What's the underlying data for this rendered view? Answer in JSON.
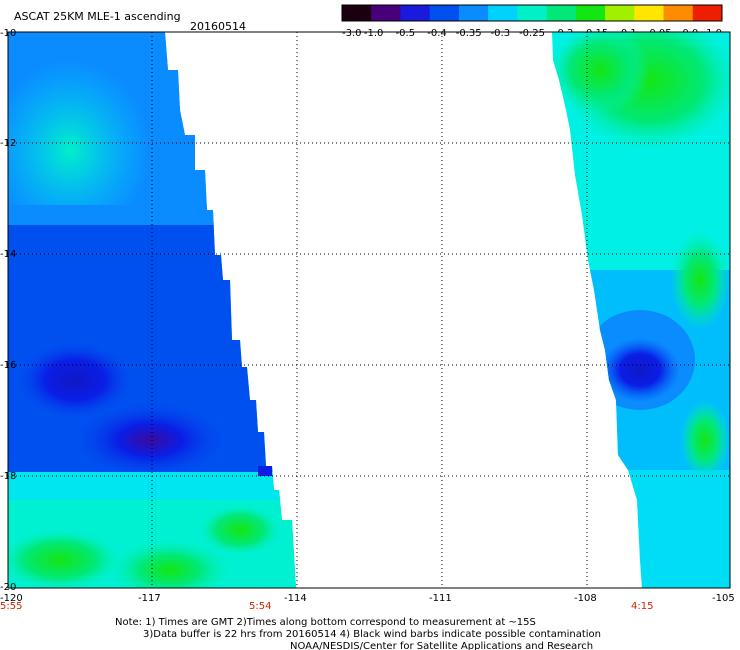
{
  "header": {
    "title": "ASCAT 25KM MLE-1 ascending",
    "date": "20160514"
  },
  "colorbar": {
    "labels": [
      "-3.0",
      "-1.0",
      "-0.5",
      "-0.4",
      "-0.35",
      "-0.3",
      "-0.25",
      "-0.2",
      "-0.15",
      "-0.1",
      "-0.05",
      "0.0",
      "1.0"
    ],
    "colors": [
      "#1a0010",
      "#45007a",
      "#1a1adc",
      "#0050f0",
      "#0a8cff",
      "#00d2ff",
      "#00f0c8",
      "#00e878",
      "#14e614",
      "#a0f000",
      "#ffe600",
      "#ff8c00",
      "#f01e00"
    ]
  },
  "map": {
    "lat_labels": [
      "-10",
      "-12",
      "-14",
      "-16",
      "-18",
      "-20"
    ],
    "lon_labels": [
      "-120",
      "-117",
      "-114",
      "-111",
      "-108",
      "-105"
    ],
    "time_labels": [
      "5:55",
      "5:54",
      "4:15"
    ],
    "colors": {
      "deep_blue": "#0a1ee6",
      "blue": "#0050f0",
      "sky": "#0a8cff",
      "light_blue": "#00b4ff",
      "cyan": "#00f0e6",
      "aqua": "#00f0b4",
      "green": "#00e878",
      "bright_green": "#14e614"
    }
  },
  "notes": {
    "line1": "Note: 1) Times are GMT 2)Times along bottom correspond to measurement at ~15S",
    "line2": "3)Data buffer is 22 hrs from 20160514 4) Black wind barbs indicate possible contamination",
    "line3": "NOAA/NESDIS/Center for Satellite Applications and Research"
  }
}
